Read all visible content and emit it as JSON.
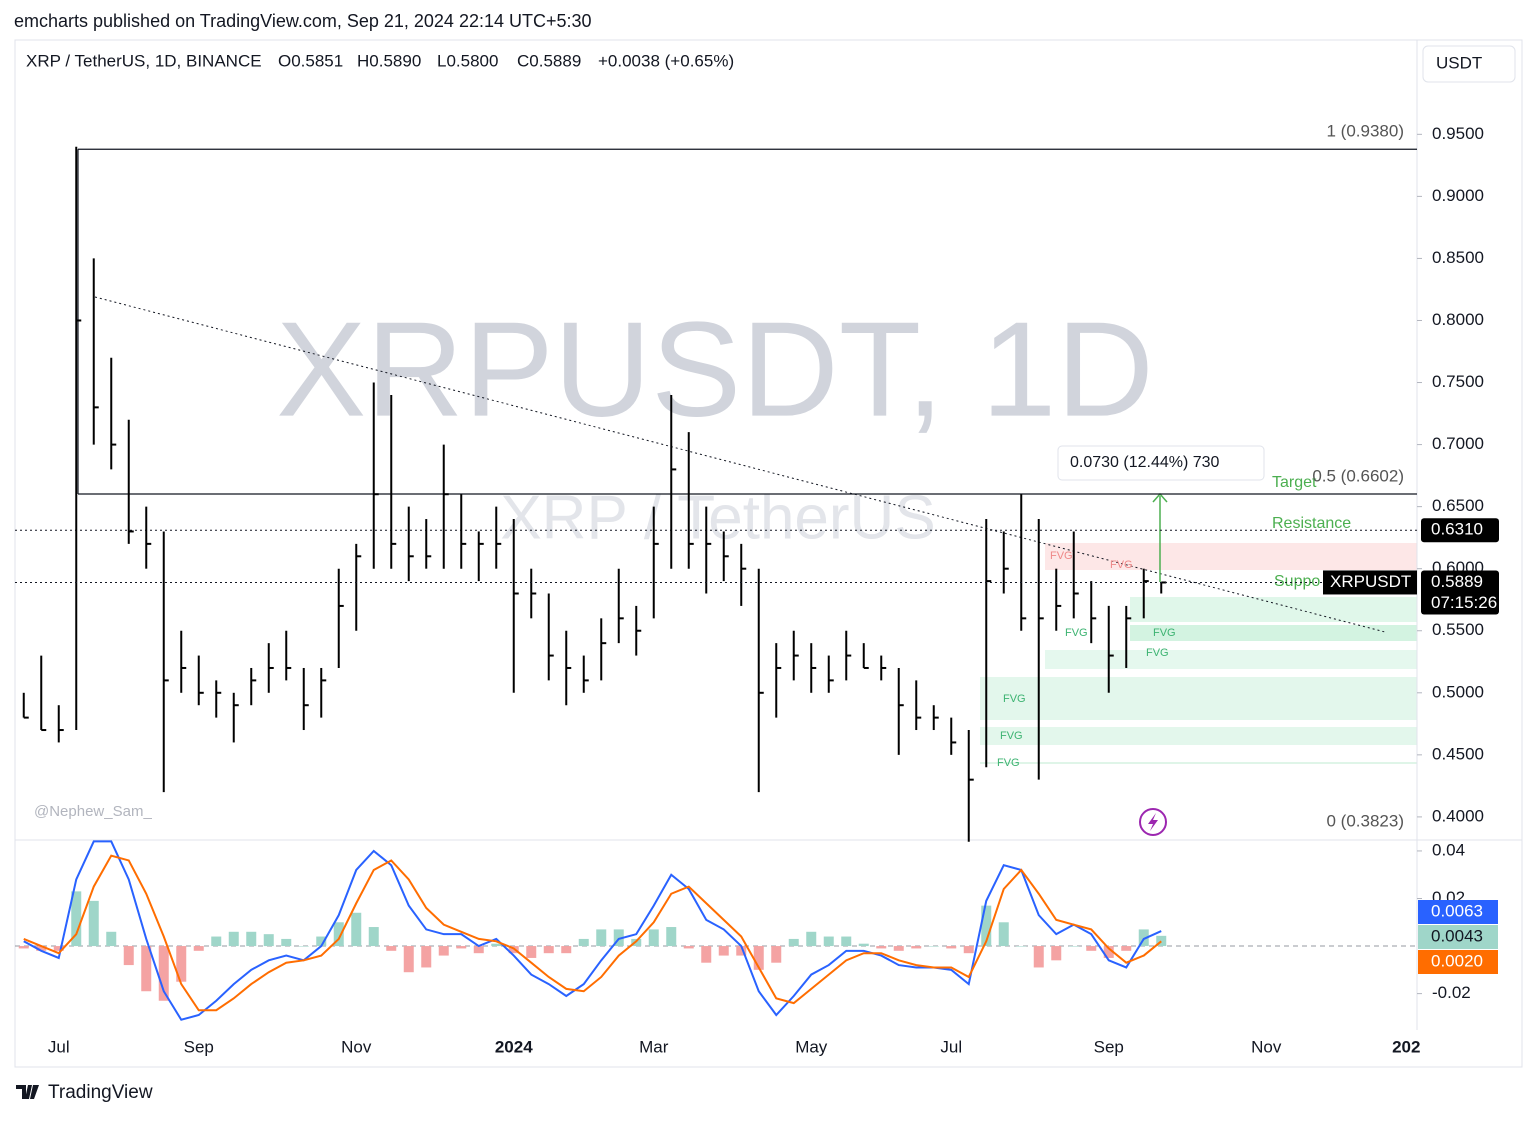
{
  "header": {
    "publisher": "emcharts published on TradingView.com, Sep 21, 2024 22:14 UTC+5:30",
    "symbol": "XRP / TetherUS, 1D, BINANCE",
    "open": "O0.5851",
    "high": "H0.5890",
    "low": "L0.5800",
    "close": "C0.5889",
    "change": "+0.0038 (+0.65%)",
    "currency": "USDT"
  },
  "watermark": {
    "main": "XRPUSDT, 1D",
    "sub": "XRP / TetherUS",
    "author": "@Nephew_Sam_"
  },
  "footer": {
    "brand": "TradingView"
  },
  "chart_data": [
    {
      "type": "ohlc",
      "color": "#000000",
      "categories": [
        null,
        null,
        "Jul",
        null,
        null,
        null,
        null,
        null,
        null,
        null,
        "Sep",
        null,
        null,
        null,
        null,
        null,
        null,
        null,
        null,
        "Nov",
        null,
        null,
        null,
        null,
        null,
        null,
        null,
        null,
        "2024",
        null,
        null,
        null,
        null,
        null,
        null,
        null,
        "Mar",
        null,
        null,
        null,
        null,
        null,
        null,
        null,
        null,
        "May",
        null,
        null,
        null,
        null,
        null,
        null,
        null,
        "Jul",
        null,
        null,
        null,
        null,
        null,
        null,
        null,
        null,
        "Sep",
        null,
        null,
        null,
        null,
        null,
        null,
        null,
        null,
        "Nov",
        null,
        null,
        null,
        null,
        null,
        null,
        null,
        "202"
      ],
      "high": [
        0.5,
        0.53,
        0.49,
        0.94,
        0.85,
        0.77,
        0.72,
        0.65,
        0.63,
        0.55,
        0.53,
        0.51,
        0.5,
        0.52,
        0.54,
        0.55,
        0.52,
        0.52,
        0.6,
        0.62,
        0.75,
        0.74,
        0.65,
        0.64,
        0.7,
        0.66,
        0.63,
        0.65,
        0.64,
        0.6,
        0.58,
        0.55,
        0.53,
        0.56,
        0.6,
        0.57,
        0.65,
        0.74,
        0.71,
        0.65,
        0.63,
        0.62,
        0.6,
        0.54,
        0.55,
        0.54,
        0.53,
        0.55,
        0.54,
        0.53,
        0.52,
        0.51,
        0.49,
        0.48,
        0.47,
        0.64,
        0.63,
        0.66,
        0.64,
        0.6,
        0.63,
        0.59,
        0.57,
        0.57,
        0.6,
        0.589,
        null,
        null,
        null,
        null,
        null,
        null,
        null,
        null,
        null,
        null,
        null,
        null,
        null,
        null
      ],
      "low": [
        0.48,
        0.47,
        0.46,
        0.47,
        0.7,
        0.68,
        0.62,
        0.6,
        0.42,
        0.5,
        0.49,
        0.48,
        0.46,
        0.49,
        0.5,
        0.51,
        0.47,
        0.48,
        0.52,
        0.55,
        0.6,
        0.6,
        0.59,
        0.6,
        0.6,
        0.6,
        0.59,
        0.6,
        0.5,
        0.56,
        0.51,
        0.49,
        0.5,
        0.51,
        0.54,
        0.53,
        0.56,
        0.6,
        0.6,
        0.58,
        0.59,
        0.57,
        0.42,
        0.48,
        0.51,
        0.5,
        0.5,
        0.51,
        0.52,
        0.51,
        0.45,
        0.47,
        0.47,
        0.45,
        0.38,
        0.44,
        0.58,
        0.55,
        0.43,
        0.55,
        0.56,
        0.54,
        0.5,
        0.52,
        0.56,
        0.58,
        null,
        null,
        null,
        null,
        null,
        null,
        null,
        null,
        null,
        null,
        null,
        null,
        null,
        null
      ],
      "close": [
        0.48,
        0.47,
        0.47,
        0.8,
        0.73,
        0.7,
        0.63,
        0.62,
        0.51,
        0.52,
        0.5,
        0.5,
        0.49,
        0.51,
        0.52,
        0.52,
        0.49,
        0.51,
        0.57,
        0.61,
        0.66,
        0.62,
        0.61,
        0.61,
        0.66,
        0.62,
        0.62,
        0.62,
        0.58,
        0.58,
        0.53,
        0.52,
        0.51,
        0.54,
        0.56,
        0.55,
        0.62,
        0.68,
        0.62,
        0.62,
        0.61,
        0.6,
        0.5,
        0.52,
        0.53,
        0.52,
        0.51,
        0.53,
        0.52,
        0.52,
        0.49,
        0.48,
        0.48,
        0.46,
        0.43,
        0.59,
        0.6,
        0.56,
        0.56,
        0.57,
        0.58,
        0.56,
        0.53,
        0.56,
        0.59,
        0.5889,
        null,
        null,
        null,
        null,
        null,
        null,
        null,
        null,
        null,
        null,
        null,
        null,
        null,
        null
      ],
      "ylim": [
        0.383,
        1.026
      ],
      "yticks": [
        {
          "value": 0.95,
          "label": "0.9500"
        },
        {
          "value": 0.9,
          "label": "0.9000"
        },
        {
          "value": 0.85,
          "label": "0.8500"
        },
        {
          "value": 0.8,
          "label": "0.8000"
        },
        {
          "value": 0.75,
          "label": "0.7500"
        },
        {
          "value": 0.7,
          "label": "0.7000"
        },
        {
          "value": 0.65,
          "label": "0.6500"
        },
        {
          "value": 0.6,
          "label": "0.6000"
        },
        {
          "value": 0.55,
          "label": "0.5500"
        },
        {
          "value": 0.5,
          "label": "0.5000"
        },
        {
          "value": 0.45,
          "label": "0.4500"
        },
        {
          "value": 0.4,
          "label": "0.4000"
        }
      ],
      "fib": [
        {
          "value": 0.938,
          "label": "1 (0.9380)"
        },
        {
          "value": 0.6602,
          "label": "0.5 (0.6602)"
        },
        {
          "value": 0.3823,
          "label": "0 (0.3823)"
        }
      ],
      "level": {
        "value": 0.631,
        "label": "0.6310"
      },
      "symbol_tag": "XRPUSDT",
      "countdown": "07:15:26",
      "annotations": {
        "measure": "0.0730 (12.44%) 730",
        "target": "Target",
        "resistance": "Resistance",
        "support": "Suppo",
        "fvg": [
          "FVG",
          "FVG",
          "FVG",
          "FVG",
          "FVG",
          "FVG",
          "FVG",
          "FVG"
        ]
      }
    },
    {
      "type": "macd",
      "ylim": [
        -0.0353,
        0.0446
      ],
      "yticks": [
        0.04,
        0.02,
        -0.02
      ],
      "series": [
        {
          "color": "#2962ff",
          "values": [
            0.002,
            -0.002,
            -0.005,
            0.028,
            0.044,
            0.044,
            0.028,
            0.003,
            -0.019,
            -0.031,
            -0.029,
            -0.023,
            -0.016,
            -0.01,
            -0.006,
            -0.004,
            -0.006,
            0.0,
            0.013,
            0.032,
            0.04,
            0.034,
            0.017,
            0.007,
            0.005,
            0.005,
            0.0,
            0.003,
            -0.004,
            -0.012,
            -0.016,
            -0.021,
            -0.016,
            -0.006,
            0.003,
            0.005,
            0.017,
            0.03,
            0.024,
            0.011,
            0.007,
            0.0,
            -0.019,
            -0.029,
            -0.021,
            -0.012,
            -0.008,
            -0.002,
            -0.002,
            -0.004,
            -0.008,
            -0.009,
            -0.009,
            -0.01,
            -0.016,
            0.019,
            0.034,
            0.032,
            0.013,
            0.005,
            0.009,
            0.005,
            -0.006,
            -0.009,
            0.003,
            0.0063,
            null,
            null,
            null,
            null,
            null,
            null,
            null,
            null,
            null,
            null,
            null,
            null,
            null,
            null
          ]
        },
        {
          "color": "#ff6d00",
          "last_value_label": "0.0020",
          "values": [
            0.003,
            0.0,
            -0.003,
            0.005,
            0.025,
            0.038,
            0.036,
            0.022,
            0.004,
            -0.016,
            -0.027,
            -0.027,
            -0.022,
            -0.016,
            -0.011,
            -0.007,
            -0.006,
            -0.004,
            0.003,
            0.018,
            0.032,
            0.036,
            0.028,
            0.016,
            0.009,
            0.006,
            0.003,
            0.002,
            -0.001,
            -0.007,
            -0.013,
            -0.018,
            -0.019,
            -0.013,
            -0.004,
            0.002,
            0.01,
            0.022,
            0.025,
            0.018,
            0.011,
            0.004,
            -0.009,
            -0.022,
            -0.024,
            -0.018,
            -0.012,
            -0.006,
            -0.003,
            -0.003,
            -0.006,
            -0.008,
            -0.009,
            -0.009,
            -0.013,
            0.002,
            0.024,
            0.032,
            0.022,
            0.011,
            0.009,
            0.007,
            -0.001,
            -0.007,
            -0.004,
            0.002,
            null,
            null,
            null,
            null,
            null,
            null,
            null,
            null,
            null,
            null,
            null,
            null,
            null,
            null
          ]
        }
      ],
      "histogram": {
        "pos_color": "#9fd6c9",
        "neg_color": "#f4a3a3",
        "values": [
          -0.001,
          -0.002,
          -0.002,
          0.023,
          0.019,
          0.006,
          -0.008,
          -0.019,
          -0.023,
          -0.015,
          -0.002,
          0.004,
          0.006,
          0.006,
          0.005,
          0.003,
          0.0,
          0.004,
          0.01,
          0.014,
          0.008,
          -0.002,
          -0.011,
          -0.009,
          -0.004,
          -0.001,
          -0.003,
          0.001,
          -0.003,
          -0.005,
          -0.003,
          -0.003,
          0.003,
          0.007,
          0.007,
          0.003,
          0.007,
          0.008,
          -0.001,
          -0.007,
          -0.004,
          -0.004,
          -0.01,
          -0.007,
          0.003,
          0.006,
          0.004,
          0.004,
          0.001,
          -0.001,
          -0.002,
          -0.001,
          0.0,
          -0.001,
          -0.003,
          0.017,
          0.01,
          0.0,
          -0.009,
          -0.006,
          0.0,
          -0.002,
          -0.005,
          -0.002,
          0.007,
          0.0043,
          null,
          null,
          null,
          null,
          null,
          null,
          null,
          null,
          null,
          null,
          null,
          null,
          null,
          null
        ]
      }
    }
  ]
}
